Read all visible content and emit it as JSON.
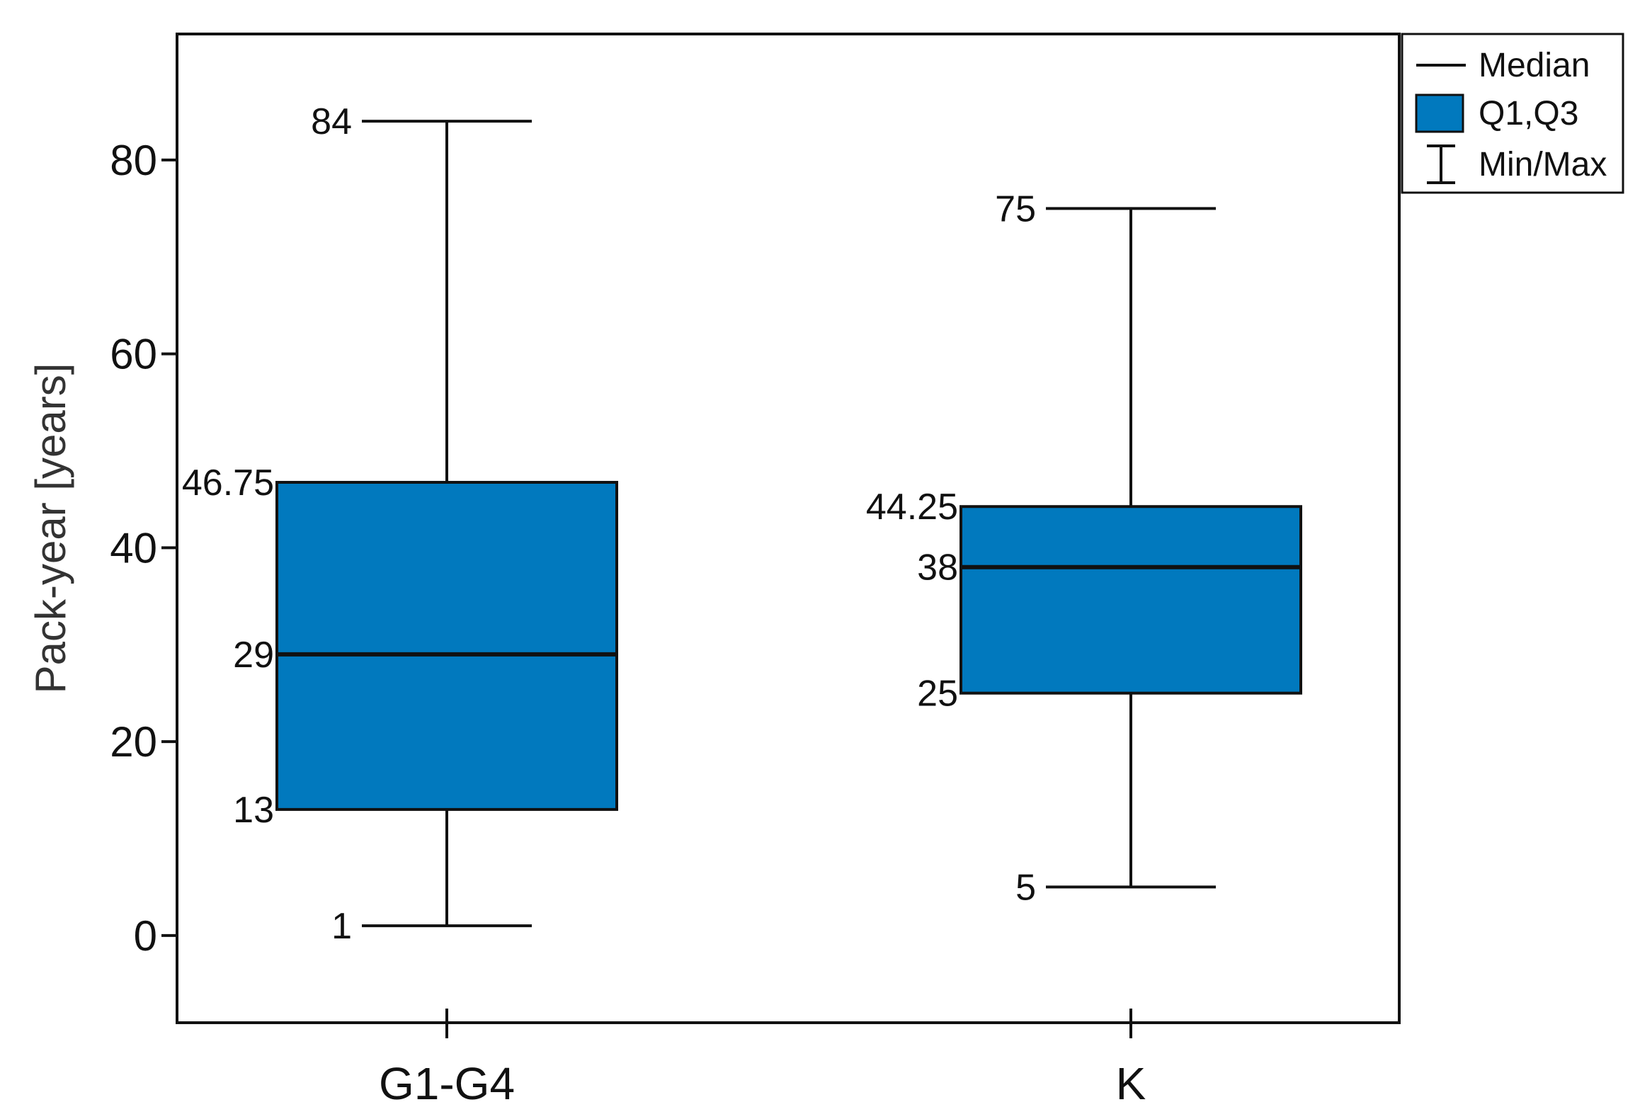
{
  "chart_data": {
    "type": "box",
    "ylabel": "Pack-year [years]",
    "ylim": [
      -9,
      93
    ],
    "yticks": [
      0,
      20,
      40,
      60,
      80
    ],
    "categories": [
      "G1-G4",
      "K"
    ],
    "boxes": [
      {
        "category": "G1-G4",
        "min": 1,
        "q1": 13,
        "median": 29,
        "q3": 46.75,
        "max": 84,
        "labels": {
          "min": "1",
          "q1": "13",
          "median": "29",
          "q3": "46.75",
          "max": "84"
        }
      },
      {
        "category": "K",
        "min": 5,
        "q1": 25,
        "median": 38,
        "q3": 44.25,
        "max": 75,
        "labels": {
          "min": "5",
          "q1": "25",
          "median": "38",
          "q3": "44.25",
          "max": "75"
        }
      }
    ],
    "legend": {
      "position": "top-right",
      "items": [
        {
          "key": "median",
          "label": "Median"
        },
        {
          "key": "box",
          "label": "Q1,Q3"
        },
        {
          "key": "minmax",
          "label": "Min/Max"
        }
      ]
    },
    "box_color": "#0179BE",
    "line_color": "#111111",
    "grid": false
  }
}
